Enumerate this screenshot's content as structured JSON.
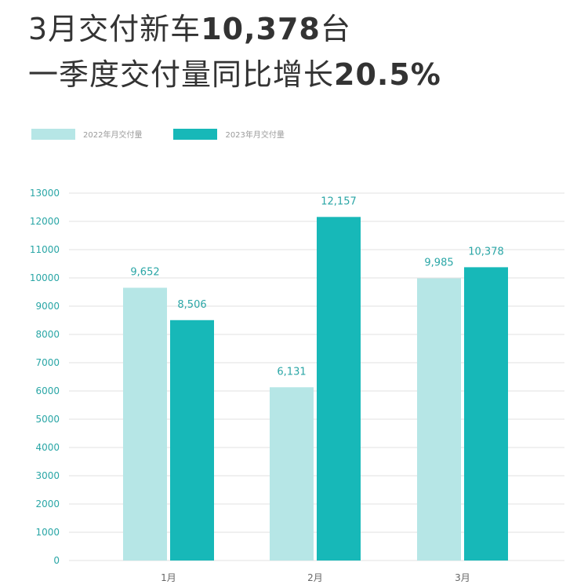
{
  "headline": {
    "line1_prefix": "3月交付新车",
    "line1_value": "10,378",
    "line1_suffix": "台",
    "line2_prefix": "一季度交付量同比增长",
    "line2_value": "20.5%"
  },
  "colors": {
    "series_2022": "#b6e6e6",
    "series_2023": "#17b8b8",
    "axis_text": "#2aa6a6",
    "grid": "#e2e2e2",
    "title": "#333333"
  },
  "chart_data": {
    "type": "bar",
    "categories": [
      "1月",
      "2月",
      "3月"
    ],
    "series": [
      {
        "name": "2022年月交付量",
        "values": [
          9652,
          6131,
          9985
        ],
        "labels": [
          "9,652",
          "6,131",
          "9,985"
        ]
      },
      {
        "name": "2023年月交付量",
        "values": [
          8506,
          12157,
          10378
        ],
        "labels": [
          "8,506",
          "12,157",
          "10,378"
        ]
      }
    ],
    "ylim": [
      0,
      13000
    ],
    "yticks": [
      0,
      1000,
      2000,
      3000,
      4000,
      5000,
      6000,
      7000,
      8000,
      9000,
      10000,
      11000,
      12000,
      13000
    ],
    "legend_position": "top-left",
    "grid": true
  }
}
